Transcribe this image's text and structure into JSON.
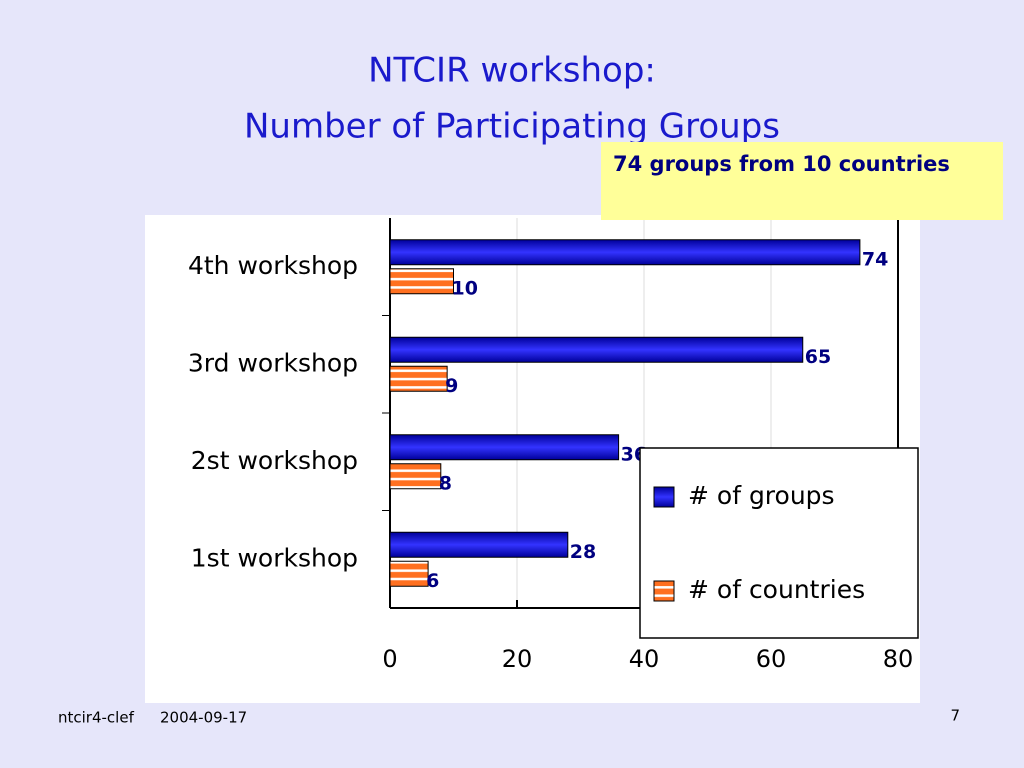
{
  "chart_data": {
    "type": "hbar",
    "title": [
      "NTCIR workshop:",
      "Number of Participating Groups"
    ],
    "annotation": "74 groups from 10 countries",
    "categories": [
      "4th workshop",
      "3rd workshop",
      "2st workshop",
      "1st workshop"
    ],
    "series": [
      {
        "name": "# of groups",
        "color": "#0000cc",
        "values": [
          74,
          65,
          36,
          28
        ]
      },
      {
        "name": "# of countries",
        "color": "#ff7020",
        "values": [
          10,
          9,
          8,
          6
        ]
      }
    ],
    "xlim": [
      0,
      80
    ],
    "xticks": [
      0,
      20,
      40,
      60,
      80
    ],
    "grid": true,
    "legend": "lower right"
  },
  "footer": {
    "source": "ntcir4-clef",
    "date": "2004-09-17",
    "page": "7"
  }
}
